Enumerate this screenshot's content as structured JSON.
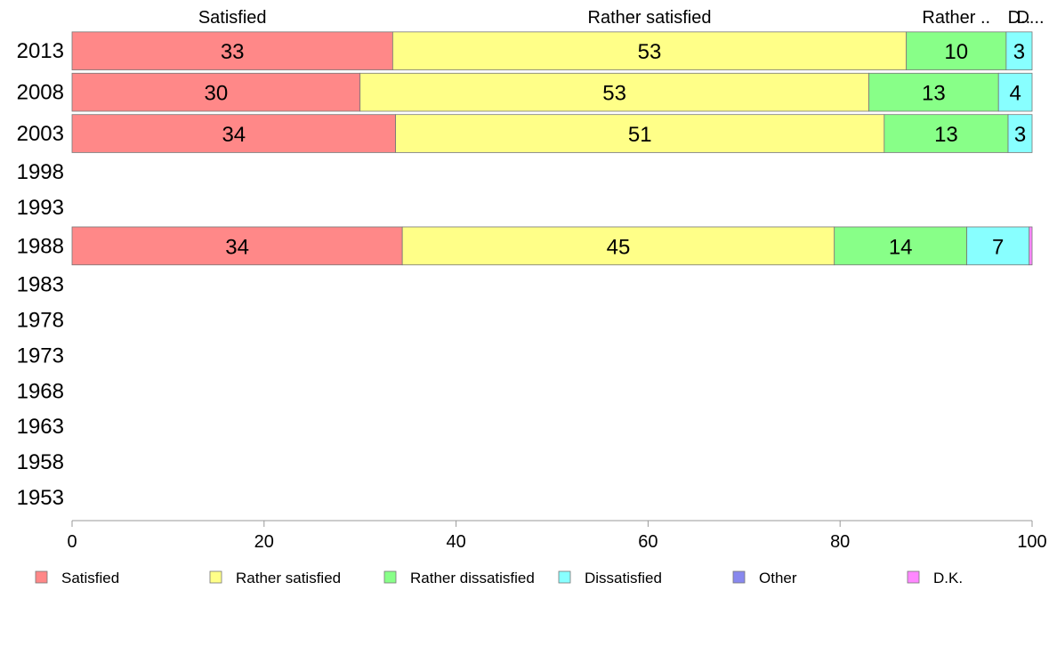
{
  "chart_data": {
    "type": "bar",
    "orientation": "horizontal",
    "stacked": true,
    "categories": [
      "2013",
      "2008",
      "2003",
      "1998",
      "1993",
      "1988",
      "1983",
      "1978",
      "1973",
      "1968",
      "1963",
      "1958",
      "1953"
    ],
    "series": [
      {
        "name": "Satisfied",
        "color": "#ff8888",
        "values": [
          33.4,
          30.0,
          33.7,
          null,
          null,
          34.4,
          null,
          null,
          null,
          null,
          null,
          null,
          null
        ],
        "labels": [
          "33",
          "30",
          "34",
          "",
          "",
          "34",
          "",
          "",
          "",
          "",
          "",
          "",
          ""
        ]
      },
      {
        "name": "Rather satisfied",
        "color": "#ffff88",
        "values": [
          53.5,
          53.0,
          50.9,
          null,
          null,
          45.0,
          null,
          null,
          null,
          null,
          null,
          null,
          null
        ],
        "labels": [
          "53",
          "53",
          "51",
          "",
          "",
          "45",
          "",
          "",
          "",
          "",
          "",
          "",
          ""
        ]
      },
      {
        "name": "Rather dissatisfied",
        "color": "#88ff88",
        "values": [
          10.4,
          13.5,
          12.9,
          null,
          null,
          13.8,
          null,
          null,
          null,
          null,
          null,
          null,
          null
        ],
        "labels": [
          "10",
          "13",
          "13",
          "",
          "",
          "14",
          "",
          "",
          "",
          "",
          "",
          "",
          ""
        ]
      },
      {
        "name": "Dissatisfied",
        "color": "#88ffff",
        "values": [
          2.7,
          3.5,
          2.5,
          null,
          null,
          6.5,
          null,
          null,
          null,
          null,
          null,
          null,
          null
        ],
        "labels": [
          "3",
          "4",
          "3",
          "",
          "",
          "7",
          "",
          "",
          "",
          "",
          "",
          "",
          ""
        ]
      },
      {
        "name": "Other",
        "color": "#8888ee",
        "values": [
          0,
          0,
          0,
          null,
          null,
          0,
          null,
          null,
          null,
          null,
          null,
          null,
          null
        ],
        "labels": [
          "",
          "",
          "",
          "",
          "",
          "",
          "",
          "",
          "",
          "",
          "",
          "",
          ""
        ]
      },
      {
        "name": "D.K.",
        "color": "#ff88ff",
        "values": [
          0,
          0,
          0,
          null,
          null,
          0.3,
          null,
          null,
          null,
          null,
          null,
          null,
          null
        ],
        "labels": [
          "",
          "",
          "",
          "",
          "",
          "",
          "",
          "",
          "",
          "",
          "",
          "",
          ""
        ]
      }
    ],
    "top_labels": [
      "Satisfied",
      "Rather satisfied",
      "Rather ..",
      "D..",
      "D..."
    ],
    "xlim": [
      0,
      100
    ],
    "xticks": [
      0,
      20,
      40,
      60,
      80,
      100
    ],
    "legend": "bottom",
    "grid": false
  }
}
